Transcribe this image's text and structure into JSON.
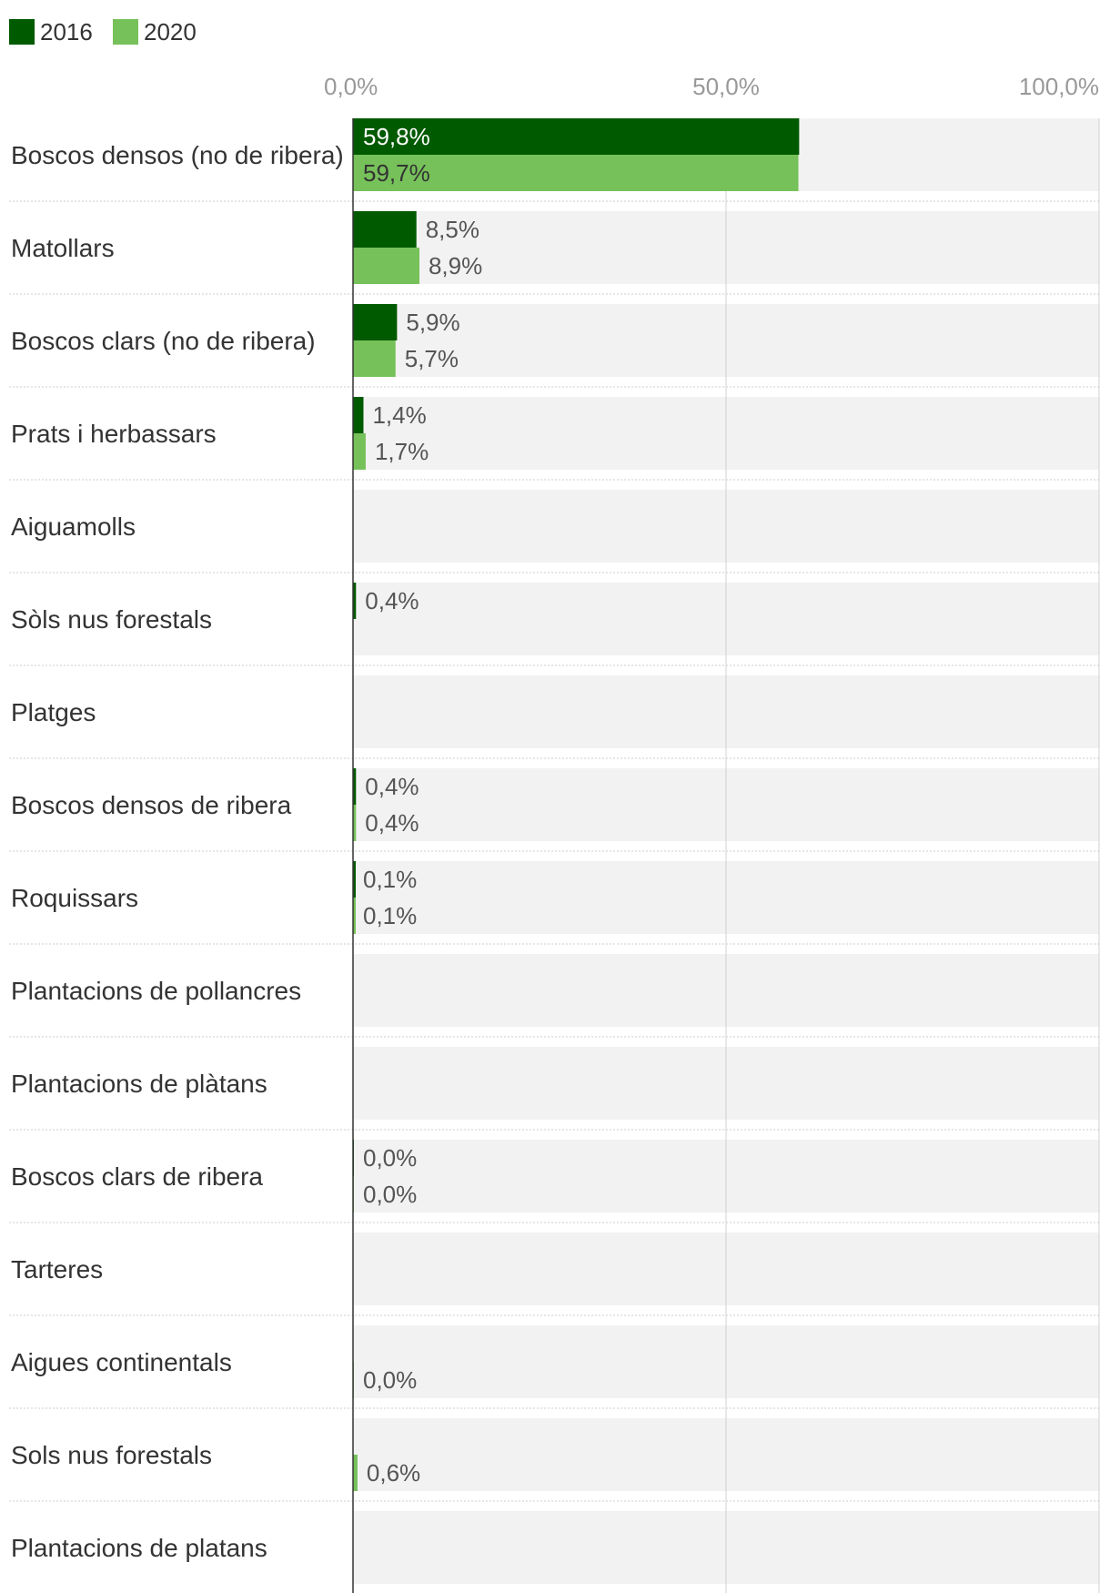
{
  "chart_data": {
    "type": "bar",
    "orientation": "horizontal",
    "categories": [
      "Boscos densos (no de ribera)",
      "Matollars",
      "Boscos clars (no de ribera)",
      "Prats i herbassars",
      "Aiguamolls",
      "Sòls nus forestals",
      "Platges",
      "Boscos densos de ribera",
      "Roquissars",
      "Plantacions de pollancres",
      "Plantacions de plàtans",
      "Boscos clars de ribera",
      "Tarteres",
      "Aigues continentals",
      "Sols nus forestals",
      "Plantacions de platans"
    ],
    "series": [
      {
        "name": "2016",
        "color": "#005a00",
        "values": [
          59.8,
          8.5,
          5.9,
          1.4,
          null,
          0.4,
          null,
          0.4,
          0.1,
          null,
          null,
          0.0,
          null,
          null,
          null,
          null
        ],
        "labels": [
          "59,8%",
          "8,5%",
          "5,9%",
          "1,4%",
          "",
          "0,4%",
          "",
          "0,4%",
          "0,1%",
          "",
          "",
          "0,0%",
          "",
          "",
          "",
          ""
        ]
      },
      {
        "name": "2020",
        "color": "#76c15a",
        "values": [
          59.7,
          8.9,
          5.7,
          1.7,
          null,
          null,
          null,
          0.4,
          0.1,
          null,
          null,
          0.0,
          null,
          0.0,
          0.6,
          null
        ],
        "labels": [
          "59,7%",
          "8,9%",
          "5,7%",
          "1,7%",
          "",
          "",
          "",
          "0,4%",
          "0,1%",
          "",
          "",
          "0,0%",
          "",
          "0,0%",
          "0,6%",
          ""
        ]
      }
    ],
    "xlim": [
      0,
      100
    ],
    "xticks": [
      0,
      50,
      100
    ],
    "xtick_labels": [
      "0,0%",
      "50,0%",
      "100,0%"
    ],
    "legend": "top-left",
    "grid": true,
    "title": "",
    "xlabel": "",
    "ylabel": ""
  }
}
